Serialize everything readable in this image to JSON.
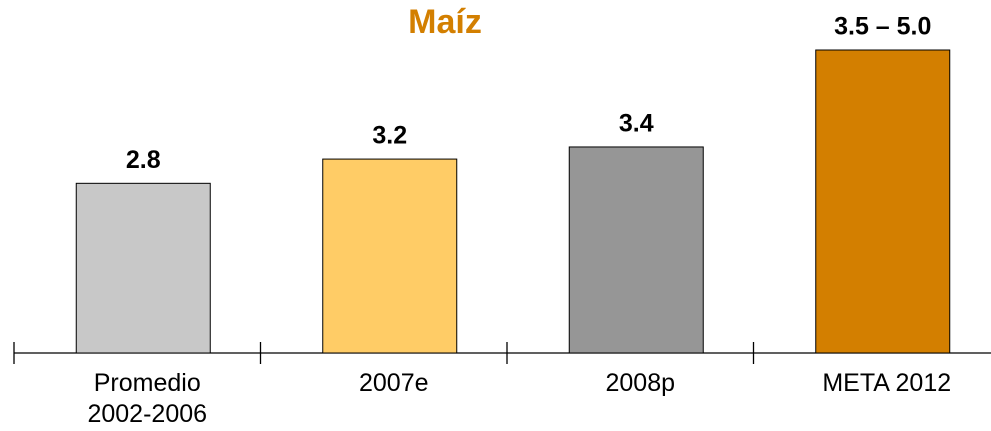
{
  "chart_data": {
    "type": "bar",
    "title": "Maíz",
    "categories": [
      "Promedio\n2002-2006",
      "2007e",
      "2008p",
      "META 2012"
    ],
    "values": [
      2.8,
      3.2,
      3.4,
      5.0
    ],
    "value_labels": [
      "2.8",
      "3.2",
      "3.4",
      "3.5 – 5.0"
    ],
    "colors": [
      "#c8c8c8",
      "#ffcc66",
      "#969696",
      "#d37f00"
    ],
    "title_color": "#d37f00"
  }
}
